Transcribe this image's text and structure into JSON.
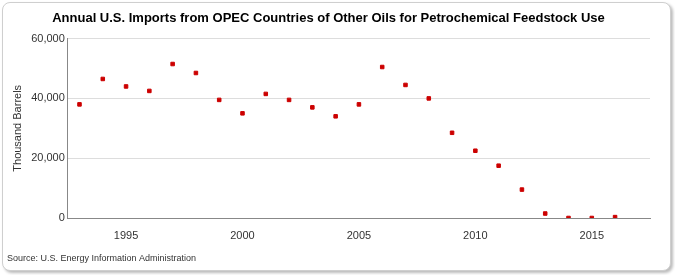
{
  "chart_data": {
    "type": "scatter",
    "title": "Annual U.S. Imports from OPEC Countries of Other Oils for Petrochemical Feedstock Use",
    "source": "Source: U.S. Energy Information Administration",
    "y_label": "Thousand Barrels",
    "x": [
      1993,
      1994,
      1995,
      1996,
      1997,
      1998,
      1999,
      2000,
      2001,
      2002,
      2003,
      2004,
      2005,
      2006,
      2007,
      2008,
      2009,
      2010,
      2011,
      2012,
      2013,
      2014,
      2015,
      2016
    ],
    "values": [
      38000,
      46500,
      44000,
      42500,
      51500,
      48500,
      39500,
      35000,
      41500,
      39500,
      37000,
      34000,
      38000,
      50500,
      44500,
      40000,
      28500,
      22500,
      17500,
      9500,
      1500,
      0,
      0,
      300
    ],
    "color": "#cc0000",
    "marker": "square",
    "xlim": [
      1992.5,
      2017.5
    ],
    "xticks": [
      1995,
      2000,
      2005,
      2010,
      2015
    ],
    "ylim": [
      0,
      60000
    ],
    "yticks": [
      0,
      {
        "value": 20000,
        "label": "20,000"
      },
      {
        "value": 40000,
        "label": "40,000"
      },
      {
        "value": 60000,
        "label": "60,000"
      }
    ],
    "grid": true
  }
}
